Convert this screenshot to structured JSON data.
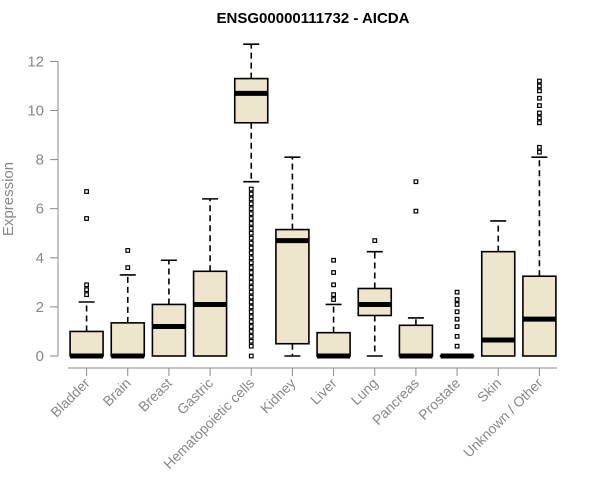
{
  "chart_data": {
    "type": "boxplot",
    "title": "ENSG00000111732 - AICDA",
    "ylabel": "Expression",
    "xlabel": "",
    "ylim": [
      0,
      12.7
    ],
    "yticks": [
      0,
      2,
      4,
      6,
      8,
      10,
      12
    ],
    "grid": false,
    "box_fill": "#ede5cc",
    "categories": [
      "Bladder",
      "Brain",
      "Breast",
      "Gastric",
      "Hematopoietic cells",
      "Kidney",
      "Liver",
      "Lung",
      "Pancreas",
      "Prostate",
      "Skin",
      "Unknown / Other"
    ],
    "boxes": [
      {
        "category": "Bladder",
        "whisker_low": 0,
        "q1": 0,
        "median": 0,
        "q3": 1.0,
        "whisker_high": 2.2,
        "outliers": [
          2.5,
          2.7,
          2.9,
          5.6,
          6.7
        ]
      },
      {
        "category": "Brain",
        "whisker_low": 0,
        "q1": 0,
        "median": 0,
        "q3": 1.35,
        "whisker_high": 3.3,
        "outliers": [
          3.6,
          4.3
        ]
      },
      {
        "category": "Breast",
        "whisker_low": 0,
        "q1": 0,
        "median": 1.2,
        "q3": 2.1,
        "whisker_high": 3.9,
        "outliers": []
      },
      {
        "category": "Gastric",
        "whisker_low": 0,
        "q1": 0,
        "median": 2.1,
        "q3": 3.45,
        "whisker_high": 6.4,
        "outliers": []
      },
      {
        "category": "Hematopoietic cells",
        "whisker_low": 7.1,
        "q1": 9.5,
        "median": 10.7,
        "q3": 11.3,
        "whisker_high": 12.7,
        "outliers": [
          0,
          0.4,
          0.6,
          0.8,
          1.0,
          1.2,
          1.4,
          1.6,
          1.8,
          2.0,
          2.2,
          2.4,
          2.6,
          2.8,
          3.0,
          3.2,
          3.4,
          3.6,
          3.8,
          4.0,
          4.2,
          4.4,
          4.6,
          4.8,
          5.0,
          5.2,
          5.4,
          5.6,
          5.8,
          6.0,
          6.2,
          6.4,
          6.6,
          6.8
        ]
      },
      {
        "category": "Kidney",
        "whisker_low": 0,
        "q1": 0.5,
        "median": 4.7,
        "q3": 5.15,
        "whisker_high": 8.1,
        "outliers": []
      },
      {
        "category": "Liver",
        "whisker_low": 0,
        "q1": 0,
        "median": 0,
        "q3": 0.95,
        "whisker_high": 2.1,
        "outliers": [
          2.3,
          2.5,
          2.9,
          3.4,
          3.9
        ]
      },
      {
        "category": "Lung",
        "whisker_low": 0,
        "q1": 1.65,
        "median": 2.1,
        "q3": 2.75,
        "whisker_high": 4.25,
        "outliers": [
          4.7
        ]
      },
      {
        "category": "Pancreas",
        "whisker_low": 0,
        "q1": 0,
        "median": 0,
        "q3": 1.25,
        "whisker_high": 1.55,
        "outliers": [
          5.9,
          7.1
        ]
      },
      {
        "category": "Prostate",
        "whisker_low": 0,
        "q1": 0,
        "median": 0,
        "q3": 0,
        "whisker_high": 0,
        "outliers": [
          0.4,
          0.8,
          1.2,
          1.5,
          1.8,
          2.1,
          2.3,
          2.6
        ]
      },
      {
        "category": "Skin",
        "whisker_low": 0,
        "q1": 0,
        "median": 0.65,
        "q3": 4.25,
        "whisker_high": 5.5,
        "outliers": []
      },
      {
        "category": "Unknown / Other",
        "whisker_low": 0,
        "q1": 0,
        "median": 1.5,
        "q3": 3.25,
        "whisker_high": 8.1,
        "outliers": [
          8.3,
          8.5,
          9.5,
          9.7,
          9.9,
          10.2,
          10.5,
          10.8,
          11.0,
          11.2
        ]
      }
    ]
  }
}
